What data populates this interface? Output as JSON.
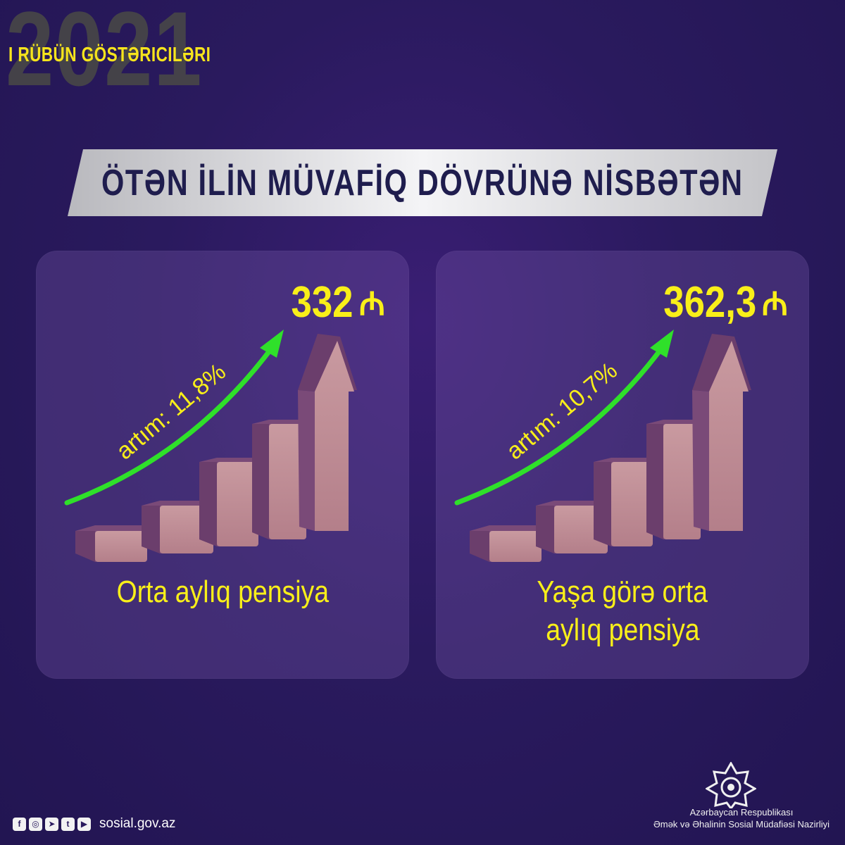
{
  "header": {
    "year": "2021",
    "quarter": "I RÜBÜN GÖSTƏRICILƏRI"
  },
  "banner": {
    "title": "ÖTƏN İLİN MÜVAFİQ DÖVRÜNƏ NİSBƏTƏN"
  },
  "cards": [
    {
      "value": "332",
      "currency": "₼",
      "growth": "artım: 11,8%",
      "label_lines": [
        "Orta aylıq pensiya"
      ]
    },
    {
      "value": "362,3",
      "currency": "₼",
      "growth": "artım: 10,7%",
      "label_lines": [
        "Yaşa görə orta",
        "aylıq pensiya"
      ]
    }
  ],
  "footer": {
    "social_icons": [
      "facebook-icon",
      "instagram-icon",
      "telegram-icon",
      "twitter-icon",
      "youtube-icon"
    ],
    "website": "sosial.gov.az",
    "ministry_line1": "Azərbaycan Respublikası",
    "ministry_line2": "Əmək və Əhalinin Sosial Müdafiəsi Nazirliyi"
  },
  "colors": {
    "background": "#2a1a5e",
    "accent_yellow": "#f9ef19",
    "arrow_green": "#2fe02a",
    "bar_front": "#c08a92",
    "bar_side": "#7a4a78"
  }
}
